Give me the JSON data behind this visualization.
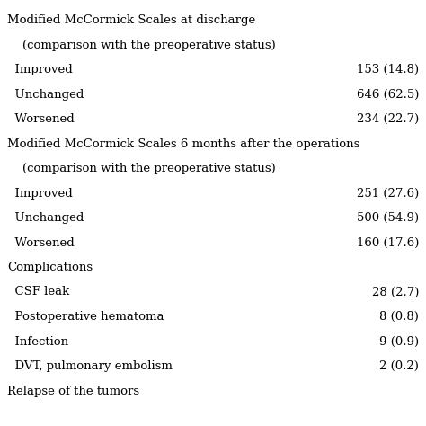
{
  "rows": [
    {
      "label": "Modified McCormick Scales at discharge",
      "value": "",
      "indent": 0,
      "bold": false,
      "header": true
    },
    {
      "label": "    (comparison with the preoperative status)",
      "value": "",
      "indent": 0,
      "bold": false,
      "header": false
    },
    {
      "label": "  Improved",
      "value": "153 (14.8)",
      "indent": 1,
      "bold": false,
      "header": false
    },
    {
      "label": "  Unchanged",
      "value": "646 (62.5)",
      "indent": 1,
      "bold": false,
      "header": false
    },
    {
      "label": "  Worsened",
      "value": "234 (22.7)",
      "indent": 1,
      "bold": false,
      "header": false
    },
    {
      "label": "Modified McCormick Scales 6 months after the operations",
      "value": "",
      "indent": 0,
      "bold": false,
      "header": true
    },
    {
      "label": "    (comparison with the preoperative status)",
      "value": "",
      "indent": 0,
      "bold": false,
      "header": false
    },
    {
      "label": "  Improved",
      "value": "251 (27.6)",
      "indent": 1,
      "bold": false,
      "header": false
    },
    {
      "label": "  Unchanged",
      "value": "500 (54.9)",
      "indent": 1,
      "bold": false,
      "header": false
    },
    {
      "label": "  Worsened",
      "value": "160 (17.6)",
      "indent": 1,
      "bold": false,
      "header": false
    },
    {
      "label": "Complications",
      "value": "",
      "indent": 0,
      "bold": false,
      "header": true
    },
    {
      "label": "  CSF leak",
      "value": "28 (2.7)",
      "indent": 1,
      "bold": false,
      "header": false
    },
    {
      "label": "  Postoperative hematoma",
      "value": "8 (0.8)",
      "indent": 1,
      "bold": false,
      "header": false
    },
    {
      "label": "  Infection",
      "value": "9 (0.9)",
      "indent": 1,
      "bold": false,
      "header": false
    },
    {
      "label": "  DVT, pulmonary embolism",
      "value": "2 (0.2)",
      "indent": 1,
      "bold": false,
      "header": false
    },
    {
      "label": "Relapse of the tumors",
      "value": "",
      "indent": 0,
      "bold": false,
      "header": true
    }
  ],
  "bg_color": "#ffffff",
  "text_color": "#000000",
  "font_size": 9.5,
  "fig_width": 4.74,
  "fig_height": 4.74,
  "dpi": 100
}
